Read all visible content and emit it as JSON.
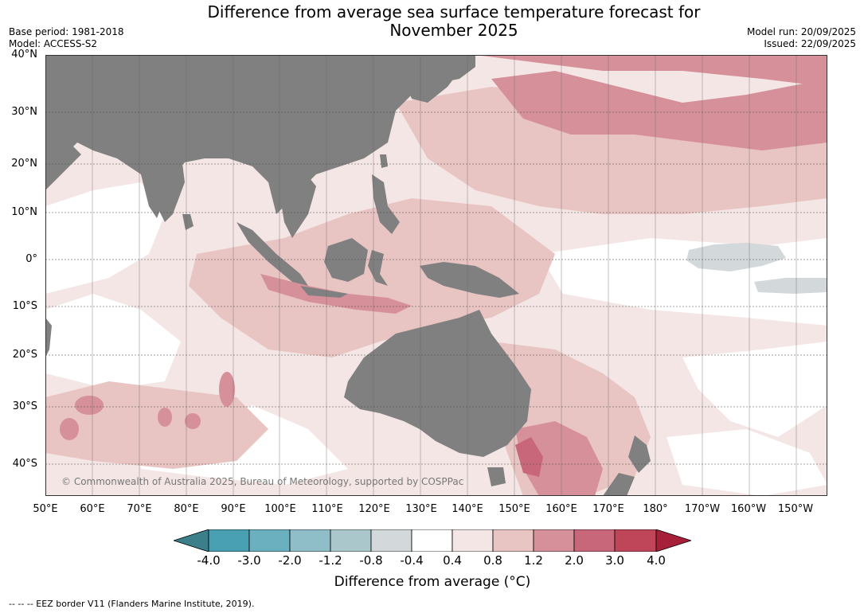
{
  "title_line1": "Difference from average sea surface temperature forecast for",
  "title_line2": "November 2025",
  "meta_left": {
    "base_period": "Base period: 1981-2018",
    "model": "Model: ACCESS-S2"
  },
  "meta_right": {
    "model_run": "Model run: 20/09/2025",
    "issued": "Issued: 22/09/2025"
  },
  "latitudes": [
    "40°N",
    "30°N",
    "20°N",
    "10°N",
    "0°",
    "10°S",
    "20°S",
    "30°S",
    "40°S"
  ],
  "longitudes": [
    "50°E",
    "60°E",
    "70°E",
    "80°E",
    "90°E",
    "100°E",
    "110°E",
    "120°E",
    "130°E",
    "140°E",
    "150°E",
    "160°E",
    "170°E",
    "180°",
    "170°W",
    "160°W",
    "150°W"
  ],
  "copyright": "© Commonwealth of Australia 2025, Bureau of Meteorology, supported by COSPPac",
  "colorbar": {
    "ticks": [
      "-4.0",
      "-3.0",
      "-2.0",
      "-1.2",
      "-0.8",
      "-0.4",
      "0.4",
      "0.8",
      "1.2",
      "2.0",
      "3.0",
      "4.0"
    ],
    "colors": [
      "#3b7f8a",
      "#4aa0b3",
      "#6bb0bf",
      "#8fbdc8",
      "#aac8cc",
      "#d3d8da",
      "#ffffff",
      "#f4e6e5",
      "#e8c4c2",
      "#d6909a",
      "#c9677a",
      "#bf4558",
      "#a81f3a"
    ],
    "label": "Difference from average (°C)"
  },
  "footnote": "--  --  -- EEZ border V11 (Flanders Marine Institute, 2019).",
  "colors": {
    "land": "#808080",
    "neutral": "#ffffff",
    "warm_light": "#f4e6e5",
    "warm_mid": "#e8c4c2",
    "warm_strong": "#d6909a",
    "warm_very": "#c9677a",
    "cool_light": "#d3d8da"
  }
}
